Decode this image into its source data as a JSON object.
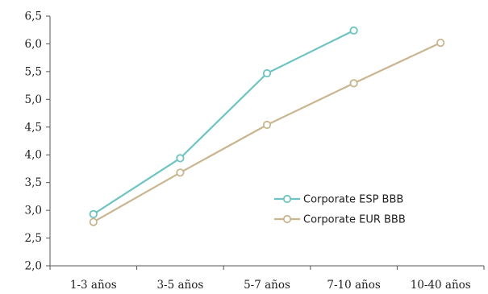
{
  "chart_data": {
    "type": "line",
    "categories": [
      "1-3 años",
      "3-5 años",
      "5-7 años",
      "7-10 años",
      "10-40 años"
    ],
    "yticks": [
      "2,0",
      "2,5",
      "3,0",
      "3,5",
      "4,0",
      "4,5",
      "5,0",
      "5,5",
      "6,0",
      "6,5"
    ],
    "ylim": [
      2.0,
      6.5
    ],
    "grid": false,
    "legend_position": "inside-lower-right",
    "series": [
      {
        "name": "Corporate ESP BBB",
        "color": "#6cc5c2",
        "values": [
          2.93,
          3.94,
          5.47,
          6.24,
          null
        ]
      },
      {
        "name": "Corporate EUR BBB",
        "color": "#c9b68f",
        "values": [
          2.79,
          3.68,
          4.54,
          5.29,
          6.02
        ]
      }
    ]
  }
}
